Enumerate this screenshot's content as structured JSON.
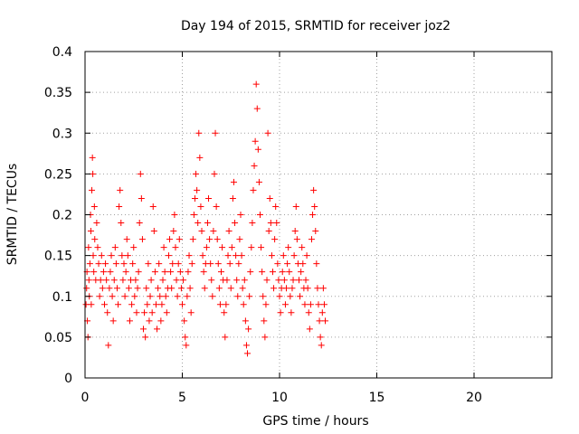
{
  "chart_data": {
    "type": "scatter",
    "title": "Day 194 of 2015, SRMTID for receiver joz2",
    "xlabel": "GPS time / hours",
    "ylabel": "SRMTID / TECUs",
    "xlim": [
      0,
      24
    ],
    "ylim": [
      0,
      0.4
    ],
    "x_ticks": [
      0,
      5,
      10,
      15,
      20
    ],
    "x_tick_labels": [
      "0",
      "5",
      "10",
      "15",
      "20"
    ],
    "y_ticks": [
      0,
      0.05,
      0.1,
      0.15,
      0.2,
      0.25,
      0.3,
      0.35,
      0.4
    ],
    "y_tick_labels": [
      "0",
      "0.05",
      "0.1",
      "0.15",
      "0.2",
      "0.25",
      "0.3",
      "0.35",
      "0.4"
    ],
    "grid": true,
    "marker": "plus",
    "series": [
      {
        "name": "SRMTID",
        "color": "#ff0000",
        "points": [
          [
            0.05,
            0.09
          ],
          [
            0.08,
            0.11
          ],
          [
            0.1,
            0.13
          ],
          [
            0.12,
            0.07
          ],
          [
            0.15,
            0.05
          ],
          [
            0.18,
            0.16
          ],
          [
            0.2,
            0.12
          ],
          [
            0.22,
            0.1
          ],
          [
            0.25,
            0.14
          ],
          [
            0.28,
            0.2
          ],
          [
            0.3,
            0.18
          ],
          [
            0.32,
            0.09
          ],
          [
            0.35,
            0.23
          ],
          [
            0.38,
            0.27
          ],
          [
            0.4,
            0.25
          ],
          [
            0.42,
            0.15
          ],
          [
            0.45,
            0.13
          ],
          [
            0.48,
            0.21
          ],
          [
            0.5,
            0.17
          ],
          [
            0.55,
            0.12
          ],
          [
            0.6,
            0.19
          ],
          [
            0.65,
            0.16
          ],
          [
            0.7,
            0.14
          ],
          [
            0.75,
            0.1
          ],
          [
            0.8,
            0.12
          ],
          [
            0.85,
            0.15
          ],
          [
            0.9,
            0.11
          ],
          [
            0.95,
            0.13
          ],
          [
            1.0,
            0.09
          ],
          [
            1.05,
            0.14
          ],
          [
            1.1,
            0.12
          ],
          [
            1.15,
            0.08
          ],
          [
            1.2,
            0.04
          ],
          [
            1.25,
            0.11
          ],
          [
            1.3,
            0.13
          ],
          [
            1.35,
            0.15
          ],
          [
            1.4,
            0.1
          ],
          [
            1.45,
            0.07
          ],
          [
            1.5,
            0.12
          ],
          [
            1.55,
            0.16
          ],
          [
            1.6,
            0.14
          ],
          [
            1.65,
            0.11
          ],
          [
            1.7,
            0.09
          ],
          [
            1.75,
            0.21
          ],
          [
            1.8,
            0.23
          ],
          [
            1.85,
            0.19
          ],
          [
            1.9,
            0.15
          ],
          [
            1.95,
            0.12
          ],
          [
            2.0,
            0.14
          ],
          [
            2.05,
            0.1
          ],
          [
            2.1,
            0.13
          ],
          [
            2.15,
            0.17
          ],
          [
            2.2,
            0.15
          ],
          [
            2.25,
            0.11
          ],
          [
            2.3,
            0.07
          ],
          [
            2.35,
            0.12
          ],
          [
            2.4,
            0.09
          ],
          [
            2.45,
            0.14
          ],
          [
            2.5,
            0.16
          ],
          [
            2.55,
            0.1
          ],
          [
            2.6,
            0.12
          ],
          [
            2.65,
            0.08
          ],
          [
            2.7,
            0.11
          ],
          [
            2.75,
            0.13
          ],
          [
            2.8,
            0.19
          ],
          [
            2.85,
            0.25
          ],
          [
            2.9,
            0.22
          ],
          [
            2.95,
            0.17
          ],
          [
            3.0,
            0.06
          ],
          [
            3.05,
            0.08
          ],
          [
            3.1,
            0.05
          ],
          [
            3.15,
            0.11
          ],
          [
            3.2,
            0.09
          ],
          [
            3.25,
            0.14
          ],
          [
            3.3,
            0.07
          ],
          [
            3.35,
            0.1
          ],
          [
            3.4,
            0.12
          ],
          [
            3.45,
            0.08
          ],
          [
            3.5,
            0.21
          ],
          [
            3.55,
            0.18
          ],
          [
            3.6,
            0.13
          ],
          [
            3.65,
            0.09
          ],
          [
            3.7,
            0.06
          ],
          [
            3.75,
            0.11
          ],
          [
            3.8,
            0.14
          ],
          [
            3.85,
            0.1
          ],
          [
            3.9,
            0.07
          ],
          [
            3.95,
            0.09
          ],
          [
            4.0,
            0.12
          ],
          [
            4.05,
            0.16
          ],
          [
            4.1,
            0.13
          ],
          [
            4.15,
            0.1
          ],
          [
            4.2,
            0.08
          ],
          [
            4.25,
            0.11
          ],
          [
            4.3,
            0.15
          ],
          [
            4.35,
            0.17
          ],
          [
            4.4,
            0.13
          ],
          [
            4.45,
            0.11
          ],
          [
            4.5,
            0.14
          ],
          [
            4.55,
            0.18
          ],
          [
            4.6,
            0.2
          ],
          [
            4.65,
            0.16
          ],
          [
            4.7,
            0.12
          ],
          [
            4.75,
            0.1
          ],
          [
            4.8,
            0.14
          ],
          [
            4.85,
            0.17
          ],
          [
            4.9,
            0.13
          ],
          [
            4.95,
            0.11
          ],
          [
            5.0,
            0.09
          ],
          [
            5.05,
            0.12
          ],
          [
            5.1,
            0.07
          ],
          [
            5.15,
            0.05
          ],
          [
            5.2,
            0.04
          ],
          [
            5.25,
            0.1
          ],
          [
            5.3,
            0.13
          ],
          [
            5.35,
            0.15
          ],
          [
            5.4,
            0.11
          ],
          [
            5.45,
            0.08
          ],
          [
            5.5,
            0.14
          ],
          [
            5.55,
            0.17
          ],
          [
            5.6,
            0.2
          ],
          [
            5.65,
            0.22
          ],
          [
            5.7,
            0.25
          ],
          [
            5.75,
            0.23
          ],
          [
            5.8,
            0.19
          ],
          [
            5.85,
            0.3
          ],
          [
            5.9,
            0.27
          ],
          [
            5.95,
            0.21
          ],
          [
            6.0,
            0.18
          ],
          [
            6.05,
            0.15
          ],
          [
            6.1,
            0.13
          ],
          [
            6.15,
            0.11
          ],
          [
            6.2,
            0.14
          ],
          [
            6.25,
            0.16
          ],
          [
            6.3,
            0.19
          ],
          [
            6.35,
            0.22
          ],
          [
            6.4,
            0.17
          ],
          [
            6.45,
            0.14
          ],
          [
            6.5,
            0.12
          ],
          [
            6.55,
            0.1
          ],
          [
            6.6,
            0.18
          ],
          [
            6.65,
            0.25
          ],
          [
            6.7,
            0.3
          ],
          [
            6.75,
            0.21
          ],
          [
            6.8,
            0.17
          ],
          [
            6.85,
            0.14
          ],
          [
            6.9,
            0.11
          ],
          [
            6.95,
            0.09
          ],
          [
            7.0,
            0.13
          ],
          [
            7.05,
            0.16
          ],
          [
            7.1,
            0.12
          ],
          [
            7.15,
            0.08
          ],
          [
            7.2,
            0.05
          ],
          [
            7.25,
            0.09
          ],
          [
            7.3,
            0.12
          ],
          [
            7.35,
            0.15
          ],
          [
            7.4,
            0.18
          ],
          [
            7.45,
            0.14
          ],
          [
            7.5,
            0.11
          ],
          [
            7.55,
            0.16
          ],
          [
            7.6,
            0.22
          ],
          [
            7.65,
            0.24
          ],
          [
            7.7,
            0.19
          ],
          [
            7.75,
            0.15
          ],
          [
            7.8,
            0.12
          ],
          [
            7.85,
            0.1
          ],
          [
            7.9,
            0.14
          ],
          [
            7.95,
            0.17
          ],
          [
            8.0,
            0.2
          ],
          [
            8.05,
            0.15
          ],
          [
            8.1,
            0.11
          ],
          [
            8.15,
            0.09
          ],
          [
            8.2,
            0.12
          ],
          [
            8.25,
            0.07
          ],
          [
            8.3,
            0.04
          ],
          [
            8.35,
            0.03
          ],
          [
            8.4,
            0.06
          ],
          [
            8.45,
            0.1
          ],
          [
            8.5,
            0.13
          ],
          [
            8.55,
            0.16
          ],
          [
            8.6,
            0.19
          ],
          [
            8.65,
            0.23
          ],
          [
            8.7,
            0.26
          ],
          [
            8.75,
            0.29
          ],
          [
            8.8,
            0.36
          ],
          [
            8.85,
            0.33
          ],
          [
            8.9,
            0.28
          ],
          [
            8.95,
            0.24
          ],
          [
            9.0,
            0.2
          ],
          [
            9.05,
            0.16
          ],
          [
            9.1,
            0.13
          ],
          [
            9.15,
            0.1
          ],
          [
            9.2,
            0.07
          ],
          [
            9.25,
            0.05
          ],
          [
            9.3,
            0.09
          ],
          [
            9.35,
            0.12
          ],
          [
            9.4,
            0.3
          ],
          [
            9.45,
            0.18
          ],
          [
            9.5,
            0.22
          ],
          [
            9.55,
            0.19
          ],
          [
            9.6,
            0.15
          ],
          [
            9.65,
            0.13
          ],
          [
            9.7,
            0.11
          ],
          [
            9.75,
            0.17
          ],
          [
            9.8,
            0.21
          ],
          [
            9.85,
            0.19
          ],
          [
            9.9,
            0.14
          ],
          [
            9.95,
            0.12
          ],
          [
            10.0,
            0.1
          ],
          [
            10.05,
            0.08
          ],
          [
            10.1,
            0.11
          ],
          [
            10.15,
            0.13
          ],
          [
            10.2,
            0.15
          ],
          [
            10.25,
            0.12
          ],
          [
            10.3,
            0.09
          ],
          [
            10.35,
            0.11
          ],
          [
            10.4,
            0.14
          ],
          [
            10.45,
            0.16
          ],
          [
            10.5,
            0.13
          ],
          [
            10.55,
            0.1
          ],
          [
            10.6,
            0.08
          ],
          [
            10.65,
            0.11
          ],
          [
            10.7,
            0.12
          ],
          [
            10.75,
            0.15
          ],
          [
            10.8,
            0.18
          ],
          [
            10.85,
            0.21
          ],
          [
            10.9,
            0.17
          ],
          [
            10.95,
            0.14
          ],
          [
            11.0,
            0.12
          ],
          [
            11.05,
            0.1
          ],
          [
            11.1,
            0.13
          ],
          [
            11.15,
            0.16
          ],
          [
            11.2,
            0.14
          ],
          [
            11.25,
            0.11
          ],
          [
            11.3,
            0.09
          ],
          [
            11.35,
            0.12
          ],
          [
            11.4,
            0.15
          ],
          [
            11.45,
            0.11
          ],
          [
            11.5,
            0.08
          ],
          [
            11.55,
            0.06
          ],
          [
            11.6,
            0.09
          ],
          [
            11.65,
            0.17
          ],
          [
            11.7,
            0.2
          ],
          [
            11.75,
            0.23
          ],
          [
            11.8,
            0.21
          ],
          [
            11.85,
            0.18
          ],
          [
            11.9,
            0.14
          ],
          [
            11.95,
            0.11
          ],
          [
            12.0,
            0.09
          ],
          [
            12.05,
            0.07
          ],
          [
            12.1,
            0.05
          ],
          [
            12.15,
            0.04
          ],
          [
            12.2,
            0.08
          ],
          [
            12.25,
            0.11
          ],
          [
            12.3,
            0.09
          ],
          [
            12.35,
            0.07
          ]
        ]
      }
    ]
  }
}
